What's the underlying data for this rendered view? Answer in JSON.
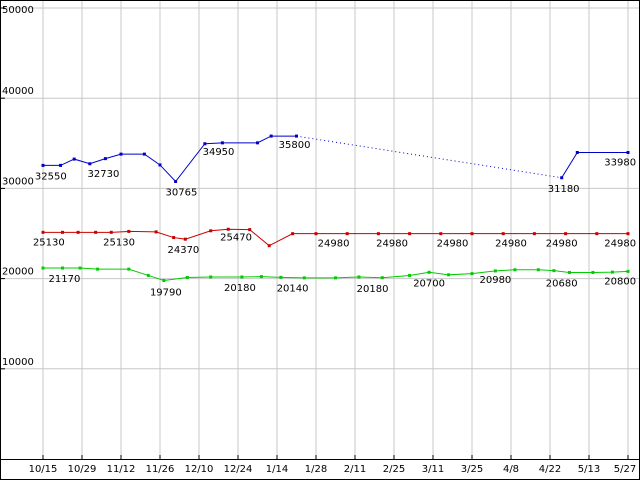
{
  "window": {
    "background": "#ffffff"
  },
  "chart_data": {
    "type": "line",
    "title": "",
    "xlabel": "",
    "ylabel": "",
    "x_unit": "tick_index",
    "ylim": [
      0,
      50000
    ],
    "y_ticks": [
      10000,
      20000,
      30000,
      40000,
      50000
    ],
    "y_tick_labels": [
      "10000",
      "20000",
      "30000",
      "40000",
      "50000"
    ],
    "x_tick_labels": [
      "10/15",
      "10/29",
      "11/12",
      "11/26",
      "12/10",
      "12/24",
      "1/14",
      "1/28",
      "2/11",
      "2/25",
      "3/11",
      "3/25",
      "4/8",
      "4/22",
      "5/13",
      "5/27"
    ],
    "grid": true,
    "grid_color": "#c8c8c8",
    "axis_color": "#000000",
    "label_color": "#000000",
    "marker": "square",
    "series": [
      {
        "name": "blue",
        "color": "#0000cc",
        "segments": [
          {
            "style": "solid",
            "points": [
              [
                0,
                32550
              ],
              [
                0.45,
                32550
              ],
              [
                0.8,
                33250
              ],
              [
                1.2,
                32730
              ],
              [
                1.6,
                33300
              ],
              [
                2.0,
                33800
              ],
              [
                2.6,
                33800
              ],
              [
                3.0,
                32600
              ],
              [
                3.4,
                30765
              ],
              [
                4.15,
                34950
              ],
              [
                4.6,
                35050
              ],
              [
                5.5,
                35050
              ],
              [
                5.85,
                35800
              ],
              [
                6.5,
                35800
              ]
            ]
          },
          {
            "style": "dotted",
            "points": [
              [
                6.5,
                35800
              ],
              [
                13.3,
                31180
              ]
            ]
          },
          {
            "style": "solid",
            "points": [
              [
                13.3,
                31180
              ],
              [
                13.7,
                33980
              ],
              [
                15,
                33980
              ]
            ]
          }
        ]
      },
      {
        "name": "red",
        "color": "#cc0000",
        "segments": [
          {
            "style": "solid",
            "points": [
              [
                0,
                25130
              ],
              [
                0.5,
                25130
              ],
              [
                0.9,
                25130
              ],
              [
                1.35,
                25130
              ],
              [
                1.75,
                25130
              ],
              [
                2.2,
                25230
              ],
              [
                2.9,
                25180
              ],
              [
                3.35,
                24550
              ],
              [
                3.65,
                24370
              ],
              [
                4.3,
                25300
              ],
              [
                4.75,
                25470
              ],
              [
                5.3,
                25430
              ],
              [
                5.8,
                23650
              ],
              [
                6.4,
                24980
              ],
              [
                7.0,
                24980
              ],
              [
                7.8,
                24980
              ],
              [
                8.6,
                24980
              ],
              [
                9.4,
                24980
              ],
              [
                10.2,
                24980
              ],
              [
                11.0,
                24980
              ],
              [
                11.8,
                24980
              ],
              [
                12.6,
                24980
              ],
              [
                13.4,
                24980
              ],
              [
                14.2,
                24980
              ],
              [
                15,
                24980
              ]
            ]
          }
        ]
      },
      {
        "name": "green",
        "color": "#00cc00",
        "segments": [
          {
            "style": "solid",
            "points": [
              [
                0,
                21170
              ],
              [
                0.5,
                21170
              ],
              [
                0.95,
                21170
              ],
              [
                1.4,
                21050
              ],
              [
                2.2,
                21050
              ],
              [
                2.7,
                20350
              ],
              [
                3.1,
                19790
              ],
              [
                3.7,
                20120
              ],
              [
                4.3,
                20180
              ],
              [
                5.1,
                20180
              ],
              [
                5.6,
                20220
              ],
              [
                6.1,
                20140
              ],
              [
                6.7,
                20080
              ],
              [
                7.5,
                20080
              ],
              [
                8.1,
                20180
              ],
              [
                8.7,
                20100
              ],
              [
                9.4,
                20350
              ],
              [
                9.9,
                20700
              ],
              [
                10.4,
                20420
              ],
              [
                11.0,
                20550
              ],
              [
                11.6,
                20850
              ],
              [
                12.1,
                20980
              ],
              [
                12.7,
                20980
              ],
              [
                13.1,
                20880
              ],
              [
                13.5,
                20680
              ],
              [
                14.1,
                20680
              ],
              [
                14.6,
                20720
              ],
              [
                15,
                20800
              ]
            ]
          }
        ]
      }
    ],
    "point_labels": [
      {
        "series": "blue",
        "text": "32550",
        "tick": 0.2,
        "value": 32550,
        "dy": 14
      },
      {
        "series": "blue",
        "text": "32730",
        "tick": 1.55,
        "value": 32730,
        "dy": 13
      },
      {
        "series": "blue",
        "text": "30765",
        "tick": 3.55,
        "value": 30765,
        "dy": 14
      },
      {
        "series": "blue",
        "text": "34950",
        "tick": 4.5,
        "value": 34950,
        "dy": 11
      },
      {
        "series": "blue",
        "text": "35800",
        "tick": 6.45,
        "value": 35800,
        "dy": 12
      },
      {
        "series": "blue",
        "text": "31180",
        "tick": 13.35,
        "value": 31180,
        "dy": 14
      },
      {
        "series": "blue",
        "text": "33980",
        "tick": 14.8,
        "value": 33980,
        "dy": 13
      },
      {
        "series": "red",
        "text": "25130",
        "tick": 0.15,
        "value": 25130,
        "dy": 13
      },
      {
        "series": "red",
        "text": "25130",
        "tick": 1.95,
        "value": 25130,
        "dy": 13
      },
      {
        "series": "red",
        "text": "24370",
        "tick": 3.6,
        "value": 24370,
        "dy": 14
      },
      {
        "series": "red",
        "text": "25470",
        "tick": 4.95,
        "value": 25470,
        "dy": 11
      },
      {
        "series": "red",
        "text": "24980",
        "tick": 7.45,
        "value": 24980,
        "dy": 13
      },
      {
        "series": "red",
        "text": "24980",
        "tick": 8.95,
        "value": 24980,
        "dy": 13
      },
      {
        "series": "red",
        "text": "24980",
        "tick": 10.5,
        "value": 24980,
        "dy": 13
      },
      {
        "series": "red",
        "text": "24980",
        "tick": 12.0,
        "value": 24980,
        "dy": 13
      },
      {
        "series": "red",
        "text": "24980",
        "tick": 13.3,
        "value": 24980,
        "dy": 13
      },
      {
        "series": "red",
        "text": "24980",
        "tick": 14.8,
        "value": 24980,
        "dy": 13
      },
      {
        "series": "green",
        "text": "21170",
        "tick": 0.55,
        "value": 21170,
        "dy": 14
      },
      {
        "series": "green",
        "text": "19790",
        "tick": 3.15,
        "value": 19790,
        "dy": 15
      },
      {
        "series": "green",
        "text": "20180",
        "tick": 5.05,
        "value": 20180,
        "dy": 14
      },
      {
        "series": "green",
        "text": "20140",
        "tick": 6.4,
        "value": 20140,
        "dy": 14
      },
      {
        "series": "green",
        "text": "20180",
        "tick": 8.45,
        "value": 20180,
        "dy": 15
      },
      {
        "series": "green",
        "text": "20700",
        "tick": 9.9,
        "value": 20700,
        "dy": 14
      },
      {
        "series": "green",
        "text": "20980",
        "tick": 11.6,
        "value": 20980,
        "dy": 13
      },
      {
        "series": "green",
        "text": "20680",
        "tick": 13.3,
        "value": 20680,
        "dy": 14
      },
      {
        "series": "green",
        "text": "20800",
        "tick": 14.8,
        "value": 20800,
        "dy": 13
      }
    ]
  }
}
